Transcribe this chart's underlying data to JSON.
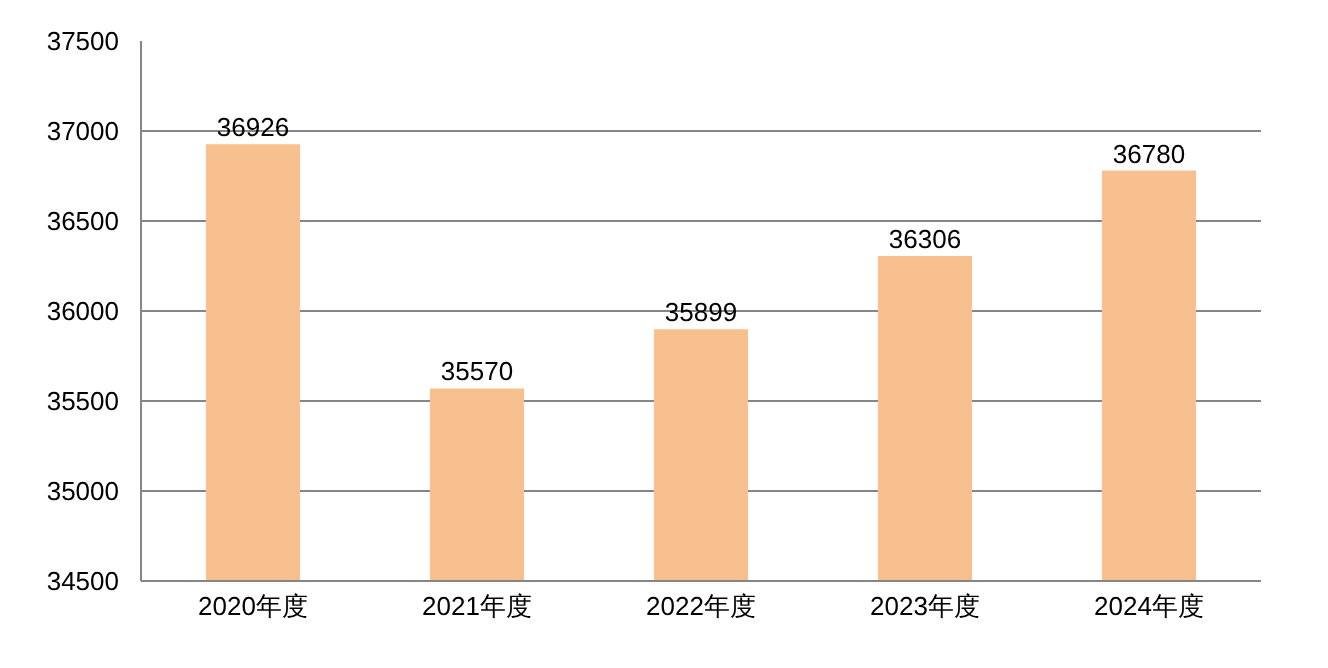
{
  "chart_data": {
    "type": "bar",
    "categories": [
      "2020年度",
      "2021年度",
      "2022年度",
      "2023年度",
      "2024年度"
    ],
    "values": [
      36926,
      35570,
      35899,
      36306,
      36780
    ],
    "color": "#f9c08f",
    "ylim": [
      34500,
      37500
    ],
    "yticks": [
      34500,
      35000,
      35500,
      36000,
      36500,
      37000,
      37500
    ],
    "grid": "y",
    "data_labels": true
  }
}
